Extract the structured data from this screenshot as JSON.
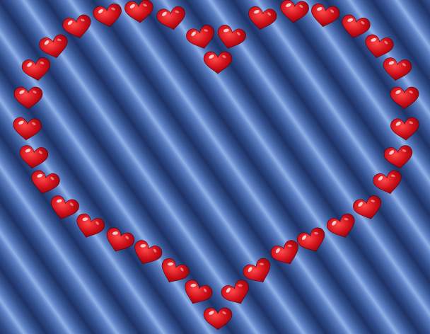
{
  "scene": {
    "background": {
      "pattern": "diagonal-stripes",
      "colors": [
        "#1e3266",
        "#4a6aa6",
        "#8fb0e6"
      ]
    },
    "motif": {
      "shape": "heart-outline-made-of-small-hearts",
      "heart_color": "#d0101a",
      "heart_highlight": "#ffffff",
      "heart_count": 38
    }
  }
}
